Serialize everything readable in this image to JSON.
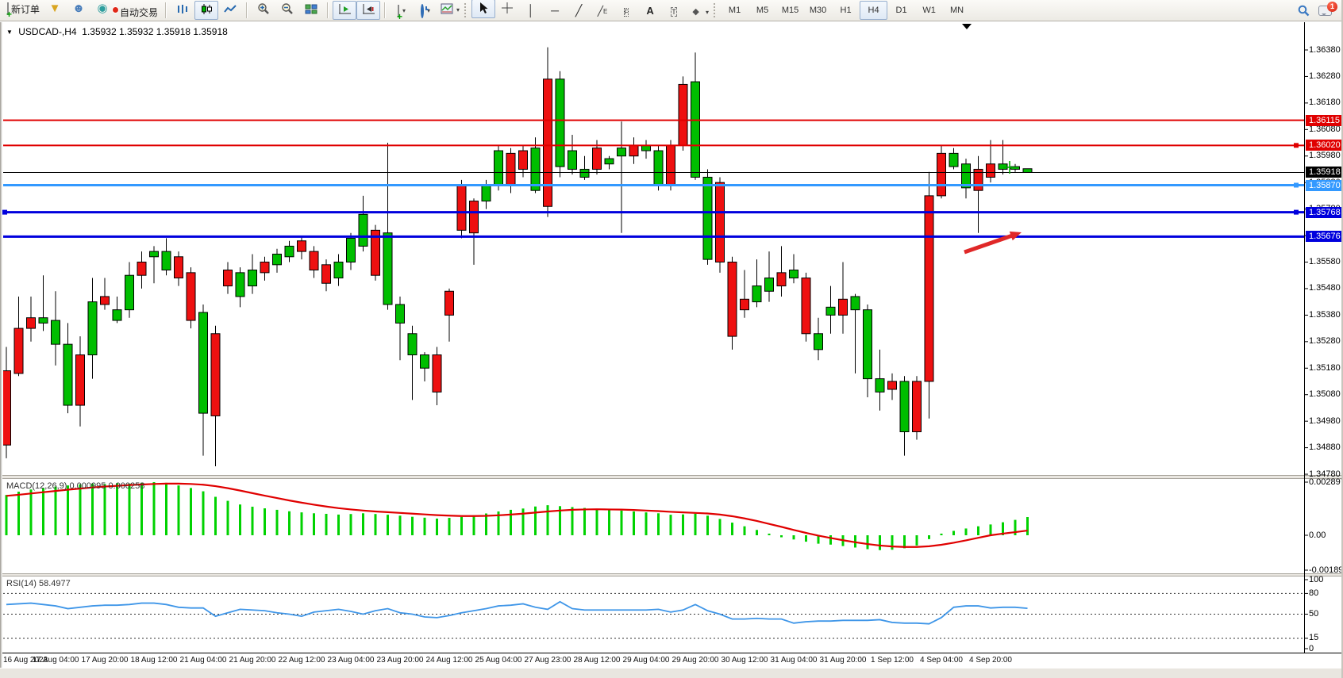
{
  "toolbar": {
    "buttons": {
      "order": [
        {
          "name": "new-order",
          "icon": "newdoc",
          "label": "新订单"
        },
        {
          "name": "quick-trade",
          "icon": "funnel",
          "label": ""
        },
        {
          "name": "profile",
          "icon": "profile",
          "label": ""
        },
        {
          "name": "signals",
          "icon": "signal",
          "label": ""
        },
        {
          "name": "auto-trading",
          "icon": "autotrade",
          "label": "自动交易"
        }
      ],
      "chart_type": [
        {
          "name": "bar-chart",
          "icon": "bars",
          "active": false
        },
        {
          "name": "candlestick-chart",
          "icon": "candles",
          "active": true
        },
        {
          "name": "line-chart",
          "icon": "linechart",
          "active": false
        }
      ],
      "zoom": [
        {
          "name": "zoom-in",
          "icon": "zoomin"
        },
        {
          "name": "zoom-out",
          "icon": "zoomout"
        },
        {
          "name": "tile-windows",
          "icon": "tiles"
        }
      ],
      "scroll": [
        {
          "name": "auto-scroll",
          "icon": "autoscroll",
          "active": true
        },
        {
          "name": "chart-shift",
          "icon": "shift",
          "active": true
        }
      ],
      "insert": [
        {
          "name": "indicators",
          "icon": "indicators",
          "dd": true
        },
        {
          "name": "periods",
          "icon": "clock",
          "dd": true
        },
        {
          "name": "templates",
          "icon": "templates",
          "dd": true
        }
      ],
      "tools": [
        {
          "name": "cursor",
          "icon": "cursor",
          "active": true
        },
        {
          "name": "crosshair",
          "icon": "crosshair"
        },
        {
          "name": "vertical-line",
          "icon": "vline"
        },
        {
          "name": "horizontal-line",
          "icon": "hline"
        },
        {
          "name": "trendline",
          "icon": "trend"
        },
        {
          "name": "equidistant-channel",
          "icon": "channel"
        },
        {
          "name": "fibonacci",
          "icon": "fibo"
        },
        {
          "name": "text",
          "icon": "text"
        },
        {
          "name": "text-label",
          "icon": "label"
        },
        {
          "name": "arrows",
          "icon": "shapes",
          "dd": true
        }
      ]
    },
    "timeframes": [
      "M1",
      "M5",
      "M15",
      "M30",
      "H1",
      "H4",
      "D1",
      "W1",
      "MN"
    ],
    "active_timeframe": "H4",
    "notification_count": "1"
  },
  "title": {
    "symbol": "USDCAD-,H4",
    "ohlc": "1.35932 1.35932 1.35918 1.35918"
  },
  "axes": {
    "price_ticks": [
      "1.36380",
      "1.36280",
      "1.36180",
      "1.36080",
      "1.35980",
      "1.35880",
      "1.35780",
      "1.35680",
      "1.35580",
      "1.35480",
      "1.35380",
      "1.35280",
      "1.35180",
      "1.35080",
      "1.34980",
      "1.34880",
      "1.34780"
    ],
    "macd_ticks": [
      "0.002897",
      "0.00",
      "-0.001891"
    ],
    "rsi_ticks": [
      "100",
      "80",
      "50",
      "15",
      "0"
    ]
  },
  "bid_label": "1.35918",
  "indicators": {
    "macd": {
      "label": "MACD(12,26,9)",
      "value_main": "0.000995",
      "value_signal": "0.000258"
    },
    "rsi": {
      "label": "RSI(14)",
      "value": "58.4977",
      "levels": [
        80,
        50,
        15
      ]
    }
  },
  "colors": {
    "bull": "#00be00",
    "bear": "#ee1010",
    "wick": "#000000",
    "macd_hist": "#00d200",
    "macd_signal": "#e00000",
    "rsi_line": "#3f96e8",
    "bid_line": "#000000",
    "line_red": "#e00000",
    "line_blue": "#0000dd",
    "line_lightblue": "#3399ff"
  },
  "chart_data": {
    "type": "candlestick",
    "symbol": "USDCAD",
    "timeframe": "H4",
    "title": "USDCAD-,H4  1.35932 1.35932 1.35918 1.35918",
    "price_range": [
      1.3478,
      1.3638
    ],
    "x_labels": [
      "16 Aug 2023",
      "17 Aug 04:00",
      "17 Aug 20:00",
      "18 Aug 12:00",
      "21 Aug 04:00",
      "21 Aug 20:00",
      "22 Aug 12:00",
      "23 Aug 04:00",
      "23 Aug 20:00",
      "24 Aug 12:00",
      "25 Aug 04:00",
      "27 Aug 23:00",
      "28 Aug 12:00",
      "29 Aug 04:00",
      "29 Aug 20:00",
      "30 Aug 12:00",
      "31 Aug 04:00",
      "31 Aug 20:00",
      "1 Sep 12:00",
      "4 Sep 04:00",
      "4 Sep 20:00"
    ],
    "horizontal_lines": [
      {
        "price": 1.36115,
        "label": "1.36115",
        "color": "#e00000",
        "width": 2,
        "marker_right": false
      },
      {
        "price": 1.3602,
        "label": "1.36020",
        "color": "#e00000",
        "width": 2,
        "marker_right": true
      },
      {
        "price": 1.3587,
        "label": "1.35870",
        "color": "#3399ff",
        "width": 3,
        "marker_right": true
      },
      {
        "price": 1.35768,
        "label": "1.35768",
        "color": "#0000dd",
        "width": 3,
        "marker_right": true,
        "marker_left": true
      },
      {
        "price": 1.35676,
        "label": "1.35676",
        "color": "#0000dd",
        "width": 3,
        "marker_right": false
      }
    ],
    "current_bid": 1.35918,
    "candles": [
      [
        1.3517,
        1.3526,
        1.3484,
        1.3489,
        "d"
      ],
      [
        1.3533,
        1.3545,
        1.3515,
        1.3516,
        "d"
      ],
      [
        1.3537,
        1.3545,
        1.3528,
        1.3533,
        "d"
      ],
      [
        1.3535,
        1.3553,
        1.3532,
        1.3537,
        "u"
      ],
      [
        1.3527,
        1.3547,
        1.3519,
        1.3536,
        "u"
      ],
      [
        1.3504,
        1.3535,
        1.3501,
        1.3527,
        "u"
      ],
      [
        1.3523,
        1.353,
        1.3496,
        1.3504,
        "d"
      ],
      [
        1.3523,
        1.3552,
        1.3514,
        1.3543,
        "u"
      ],
      [
        1.3545,
        1.3552,
        1.354,
        1.3542,
        "d"
      ],
      [
        1.3536,
        1.3545,
        1.3535,
        1.354,
        "u"
      ],
      [
        1.354,
        1.3558,
        1.3537,
        1.3553,
        "u"
      ],
      [
        1.3558,
        1.3562,
        1.3548,
        1.3553,
        "d"
      ],
      [
        1.356,
        1.3564,
        1.355,
        1.3562,
        "u"
      ],
      [
        1.3555,
        1.3567,
        1.3553,
        1.3562,
        "u"
      ],
      [
        1.356,
        1.3562,
        1.3549,
        1.3552,
        "d"
      ],
      [
        1.3554,
        1.3556,
        1.3533,
        1.3536,
        "d"
      ],
      [
        1.3501,
        1.3542,
        1.3485,
        1.3539,
        "u"
      ],
      [
        1.3531,
        1.3534,
        1.3481,
        1.35,
        "d"
      ],
      [
        1.3555,
        1.3558,
        1.3546,
        1.3549,
        "d"
      ],
      [
        1.3545,
        1.3556,
        1.3541,
        1.3554,
        "u"
      ],
      [
        1.3549,
        1.3561,
        1.3546,
        1.3555,
        "u"
      ],
      [
        1.3558,
        1.356,
        1.3551,
        1.3554,
        "d"
      ],
      [
        1.3557,
        1.3563,
        1.3554,
        1.3561,
        "u"
      ],
      [
        1.356,
        1.3566,
        1.3558,
        1.3564,
        "u"
      ],
      [
        1.3566,
        1.3568,
        1.3559,
        1.3562,
        "d"
      ],
      [
        1.3562,
        1.3564,
        1.3552,
        1.3555,
        "d"
      ],
      [
        1.3557,
        1.3559,
        1.3547,
        1.355,
        "d"
      ],
      [
        1.3552,
        1.3561,
        1.3549,
        1.3558,
        "u"
      ],
      [
        1.3558,
        1.3569,
        1.3555,
        1.3567,
        "u"
      ],
      [
        1.3564,
        1.3583,
        1.3562,
        1.3576,
        "u"
      ],
      [
        1.357,
        1.3572,
        1.3551,
        1.3553,
        "d"
      ],
      [
        1.3542,
        1.3603,
        1.354,
        1.3569,
        "u"
      ],
      [
        1.3535,
        1.3545,
        1.3521,
        1.3542,
        "u"
      ],
      [
        1.3523,
        1.3534,
        1.3506,
        1.3531,
        "u"
      ],
      [
        1.3518,
        1.3524,
        1.3513,
        1.3523,
        "u"
      ],
      [
        1.3523,
        1.3526,
        1.3504,
        1.3509,
        "d"
      ],
      [
        1.3547,
        1.3548,
        1.3528,
        1.3538,
        "d"
      ],
      [
        1.3587,
        1.3589,
        1.3567,
        1.357,
        "d"
      ],
      [
        1.3581,
        1.3582,
        1.3557,
        1.3569,
        "d"
      ],
      [
        1.3581,
        1.3589,
        1.3578,
        1.3587,
        "u"
      ],
      [
        1.3587,
        1.3602,
        1.3585,
        1.36,
        "u"
      ],
      [
        1.3599,
        1.3601,
        1.3584,
        1.3587,
        "d"
      ],
      [
        1.36,
        1.3602,
        1.359,
        1.3593,
        "d"
      ],
      [
        1.3585,
        1.3605,
        1.3584,
        1.3601,
        "u"
      ],
      [
        1.3627,
        1.3639,
        1.3575,
        1.3579,
        "d"
      ],
      [
        1.3594,
        1.363,
        1.359,
        1.3627,
        "u"
      ],
      [
        1.3593,
        1.3606,
        1.3591,
        1.36,
        "u"
      ],
      [
        1.359,
        1.3598,
        1.3589,
        1.3593,
        "u"
      ],
      [
        1.3601,
        1.3604,
        1.3591,
        1.3593,
        "d"
      ],
      [
        1.3595,
        1.3598,
        1.3593,
        1.3597,
        "u"
      ],
      [
        1.3598,
        1.3611,
        1.3569,
        1.3601,
        "u"
      ],
      [
        1.3602,
        1.3605,
        1.3595,
        1.3598,
        "d"
      ],
      [
        1.36,
        1.3604,
        1.3597,
        1.3602,
        "u"
      ],
      [
        1.3587,
        1.3602,
        1.3585,
        1.36,
        "u"
      ],
      [
        1.3602,
        1.3604,
        1.3585,
        1.3587,
        "d"
      ],
      [
        1.3625,
        1.3628,
        1.36,
        1.3602,
        "d"
      ],
      [
        1.359,
        1.3637,
        1.3589,
        1.3626,
        "u"
      ],
      [
        1.3559,
        1.3593,
        1.3557,
        1.359,
        "u"
      ],
      [
        1.3588,
        1.359,
        1.3554,
        1.3558,
        "d"
      ],
      [
        1.3558,
        1.356,
        1.3525,
        1.353,
        "d"
      ],
      [
        1.3544,
        1.3555,
        1.3537,
        1.354,
        "d"
      ],
      [
        1.3543,
        1.3559,
        1.3541,
        1.3549,
        "u"
      ],
      [
        1.3547,
        1.3562,
        1.3543,
        1.3552,
        "u"
      ],
      [
        1.3554,
        1.3564,
        1.3545,
        1.3549,
        "d"
      ],
      [
        1.3552,
        1.3561,
        1.355,
        1.3555,
        "u"
      ],
      [
        1.3552,
        1.3554,
        1.3528,
        1.3531,
        "d"
      ],
      [
        1.3525,
        1.3537,
        1.3521,
        1.3531,
        "u"
      ],
      [
        1.3538,
        1.3549,
        1.3531,
        1.3541,
        "u"
      ],
      [
        1.3544,
        1.3558,
        1.3531,
        1.3538,
        "d"
      ],
      [
        1.354,
        1.3546,
        1.3516,
        1.3545,
        "u"
      ],
      [
        1.3514,
        1.3542,
        1.3507,
        1.354,
        "u"
      ],
      [
        1.3509,
        1.3525,
        1.3502,
        1.3514,
        "u"
      ],
      [
        1.3513,
        1.3516,
        1.3506,
        1.351,
        "d"
      ],
      [
        1.3494,
        1.3515,
        1.3485,
        1.3513,
        "u"
      ],
      [
        1.3513,
        1.3515,
        1.3491,
        1.3494,
        "d"
      ],
      [
        1.3583,
        1.3592,
        1.3499,
        1.3513,
        "d"
      ],
      [
        1.3599,
        1.3602,
        1.3582,
        1.3583,
        "d"
      ],
      [
        1.3594,
        1.3601,
        1.3593,
        1.3599,
        "u"
      ],
      [
        1.3586,
        1.3597,
        1.3582,
        1.3595,
        "u"
      ],
      [
        1.3593,
        1.3598,
        1.3569,
        1.3585,
        "d"
      ],
      [
        1.3595,
        1.3604,
        1.3588,
        1.359,
        "d"
      ],
      [
        1.3593,
        1.3604,
        1.3591,
        1.3595,
        "u"
      ],
      [
        1.3593,
        1.3595,
        1.3592,
        1.3594,
        "u"
      ],
      [
        1.35932,
        1.35932,
        1.35918,
        1.35918,
        "u"
      ]
    ],
    "macd": {
      "histogram": [
        0.0022,
        0.00238,
        0.0025,
        0.00258,
        0.00266,
        0.00272,
        0.00278,
        0.00282,
        0.0028,
        0.00284,
        0.00282,
        0.00287,
        0.0029,
        0.00286,
        0.00272,
        0.00258,
        0.0024,
        0.0021,
        0.00188,
        0.00168,
        0.00156,
        0.00147,
        0.00139,
        0.00131,
        0.00125,
        0.0012,
        0.00117,
        0.00113,
        0.00116,
        0.0012,
        0.00116,
        0.00112,
        0.00107,
        0.00101,
        0.00096,
        0.00091,
        0.00095,
        0.001,
        0.00109,
        0.00119,
        0.0013,
        0.00139,
        0.00146,
        0.00157,
        0.00164,
        0.00159,
        0.00154,
        0.00149,
        0.00144,
        0.00139,
        0.00135,
        0.0013,
        0.00125,
        0.0012,
        0.00112,
        0.00114,
        0.00118,
        0.00107,
        0.00089,
        0.00069,
        0.00049,
        0.00029,
        9e-05,
        -0.00011,
        -0.00023,
        -0.00035,
        -0.00046,
        -0.00051,
        -0.00059,
        -0.00067,
        -0.00076,
        -0.00081,
        -0.00079,
        -0.00071,
        -0.00056,
        -0.00021,
        9e-05,
        0.00024,
        0.00037,
        0.00049,
        0.00059,
        0.00071,
        0.00084,
        0.000995
      ],
      "signal": [
        0.00215,
        0.00221,
        0.00228,
        0.00235,
        0.00242,
        0.00249,
        0.00255,
        0.00261,
        0.00266,
        0.0027,
        0.00274,
        0.00277,
        0.0028,
        0.00282,
        0.00282,
        0.0028,
        0.00276,
        0.00268,
        0.00257,
        0.00244,
        0.0023,
        0.00216,
        0.00203,
        0.0019,
        0.00178,
        0.00167,
        0.00157,
        0.00148,
        0.00141,
        0.00135,
        0.0013,
        0.00126,
        0.00122,
        0.00118,
        0.00114,
        0.0011,
        0.00107,
        0.00105,
        0.00105,
        0.00106,
        0.00109,
        0.00113,
        0.00118,
        0.00124,
        0.0013,
        0.00135,
        0.00139,
        0.00141,
        0.00142,
        0.00141,
        0.0014,
        0.00138,
        0.00135,
        0.00132,
        0.00128,
        0.00125,
        0.00122,
        0.00119,
        0.00113,
        0.00104,
        0.00092,
        0.00078,
        0.00062,
        0.00046,
        0.00029,
        0.00013,
        -2e-05,
        -0.00015,
        -0.00027,
        -0.00038,
        -0.00048,
        -0.00056,
        -0.00061,
        -0.00064,
        -0.00064,
        -0.0006,
        -0.00052,
        -0.00041,
        -0.00028,
        -0.00014,
        0.0,
        9e-05,
        0.00017,
        0.000258
      ],
      "range": [
        -0.001891,
        0.002897
      ]
    },
    "rsi": {
      "values": [
        64,
        65,
        66,
        64,
        62,
        58,
        60,
        62,
        63,
        63,
        64,
        66,
        66,
        64,
        60,
        59,
        59,
        47,
        52,
        57,
        56,
        55,
        52,
        50,
        47,
        53,
        55,
        57,
        54,
        50,
        55,
        58,
        52,
        50,
        46,
        45,
        48,
        52,
        55,
        58,
        62,
        63,
        65,
        60,
        57,
        68,
        58,
        56,
        56,
        56,
        56,
        56,
        56,
        57,
        53,
        56,
        64,
        55,
        50,
        43,
        43,
        44,
        43,
        43,
        37,
        39,
        40,
        40,
        41,
        41,
        41,
        42,
        38,
        37,
        37,
        36,
        45,
        60,
        62,
        62,
        59,
        60,
        60,
        58.4977
      ],
      "range": [
        0,
        100
      ]
    },
    "annotations": [
      {
        "type": "arrow",
        "color": "#e02828",
        "from_xy": [
          1215,
          318
        ],
        "to_xy": [
          1287,
          293
        ]
      },
      {
        "type": "plus-marker",
        "color": "#00a800",
        "xy": [
          1272,
          211
        ]
      },
      {
        "type": "shift-marker",
        "color": "#000000",
        "xy": [
          1218,
          30
        ]
      }
    ]
  }
}
